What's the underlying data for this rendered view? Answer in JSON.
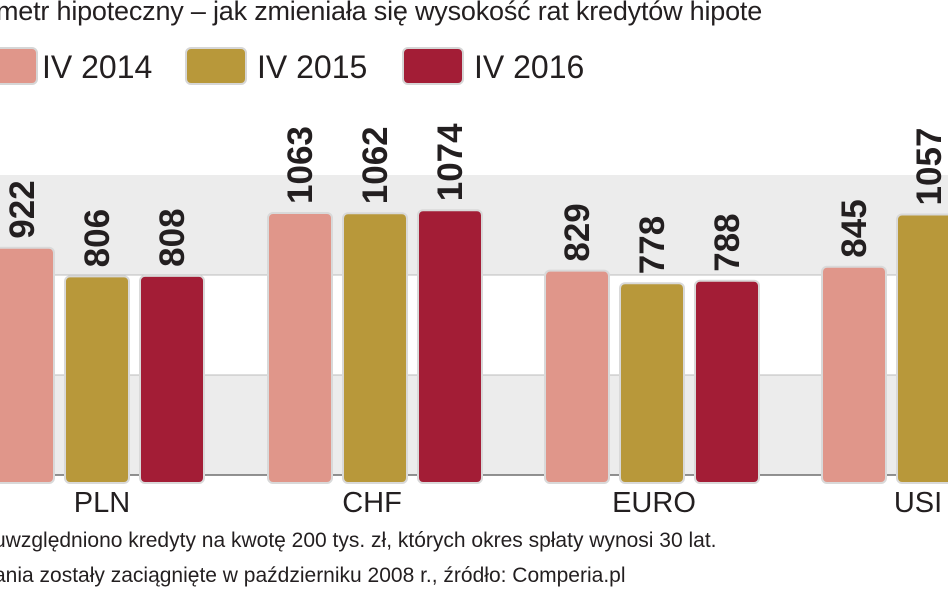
{
  "title": "metr hipoteczny – jak zmieniała się wysokość rat kredytów hipote",
  "legend": [
    {
      "label": "IV 2014",
      "color": "#e0968a"
    },
    {
      "label": "IV 2015",
      "color": "#b8983a"
    },
    {
      "label": "IV 2016",
      "color": "#a31d36"
    }
  ],
  "chart_data": {
    "type": "bar",
    "categories": [
      "PLN",
      "CHF",
      "EURO",
      "USI"
    ],
    "series": [
      {
        "name": "IV 2014",
        "values": [
          922,
          1063,
          829,
          845
        ]
      },
      {
        "name": "IV 2015",
        "values": [
          806,
          1062,
          778,
          1057
        ]
      },
      {
        "name": "IV 2016",
        "values": [
          808,
          1074,
          788,
          null
        ]
      }
    ],
    "colors": [
      "#e0968a",
      "#b8983a",
      "#a31d36"
    ],
    "title": "metr hipoteczny – jak zmieniała się wysokość rat kredytów hipote",
    "xlabel": "",
    "ylabel": "",
    "grid": true,
    "legend_position": "top-left"
  },
  "footnotes": [
    "uwzględniono kredyty na kwotę 200 tys. zł, których okres spłaty wynosi 30 lat.",
    "ania zostały zaciągnięte w październiku 2008 r., źródło: Comperia.pl"
  ]
}
